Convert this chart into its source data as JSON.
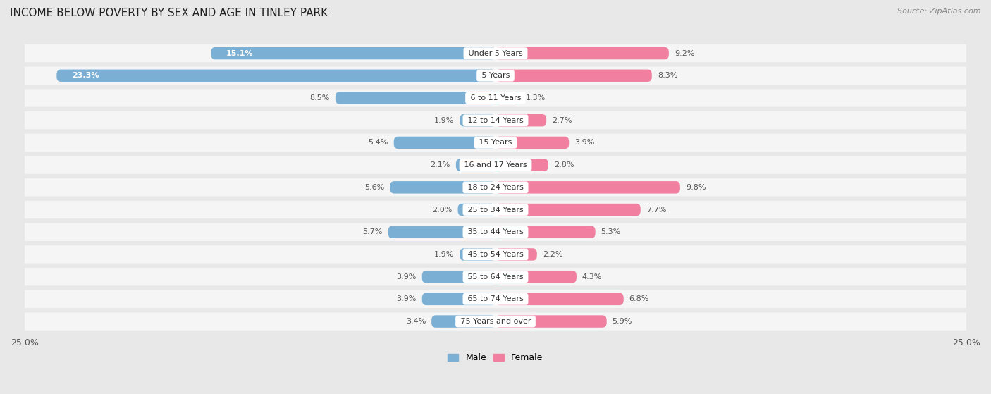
{
  "title": "INCOME BELOW POVERTY BY SEX AND AGE IN TINLEY PARK",
  "source": "Source: ZipAtlas.com",
  "categories": [
    "Under 5 Years",
    "5 Years",
    "6 to 11 Years",
    "12 to 14 Years",
    "15 Years",
    "16 and 17 Years",
    "18 to 24 Years",
    "25 to 34 Years",
    "35 to 44 Years",
    "45 to 54 Years",
    "55 to 64 Years",
    "65 to 74 Years",
    "75 Years and over"
  ],
  "male_values": [
    15.1,
    23.3,
    8.5,
    1.9,
    5.4,
    2.1,
    5.6,
    2.0,
    5.7,
    1.9,
    3.9,
    3.9,
    3.4
  ],
  "female_values": [
    9.2,
    8.3,
    1.3,
    2.7,
    3.9,
    2.8,
    9.8,
    7.7,
    5.3,
    2.2,
    4.3,
    6.8,
    5.9
  ],
  "male_color": "#7bafd4",
  "female_color": "#f07fa0",
  "male_label": "Male",
  "female_label": "Female",
  "xlim": 25.0,
  "bg_color": "#e8e8e8",
  "row_bg_color": "#f5f5f5",
  "title_fontsize": 11,
  "source_fontsize": 8,
  "label_fontsize": 8,
  "category_fontsize": 8,
  "axis_label_fontsize": 9,
  "legend_fontsize": 9
}
